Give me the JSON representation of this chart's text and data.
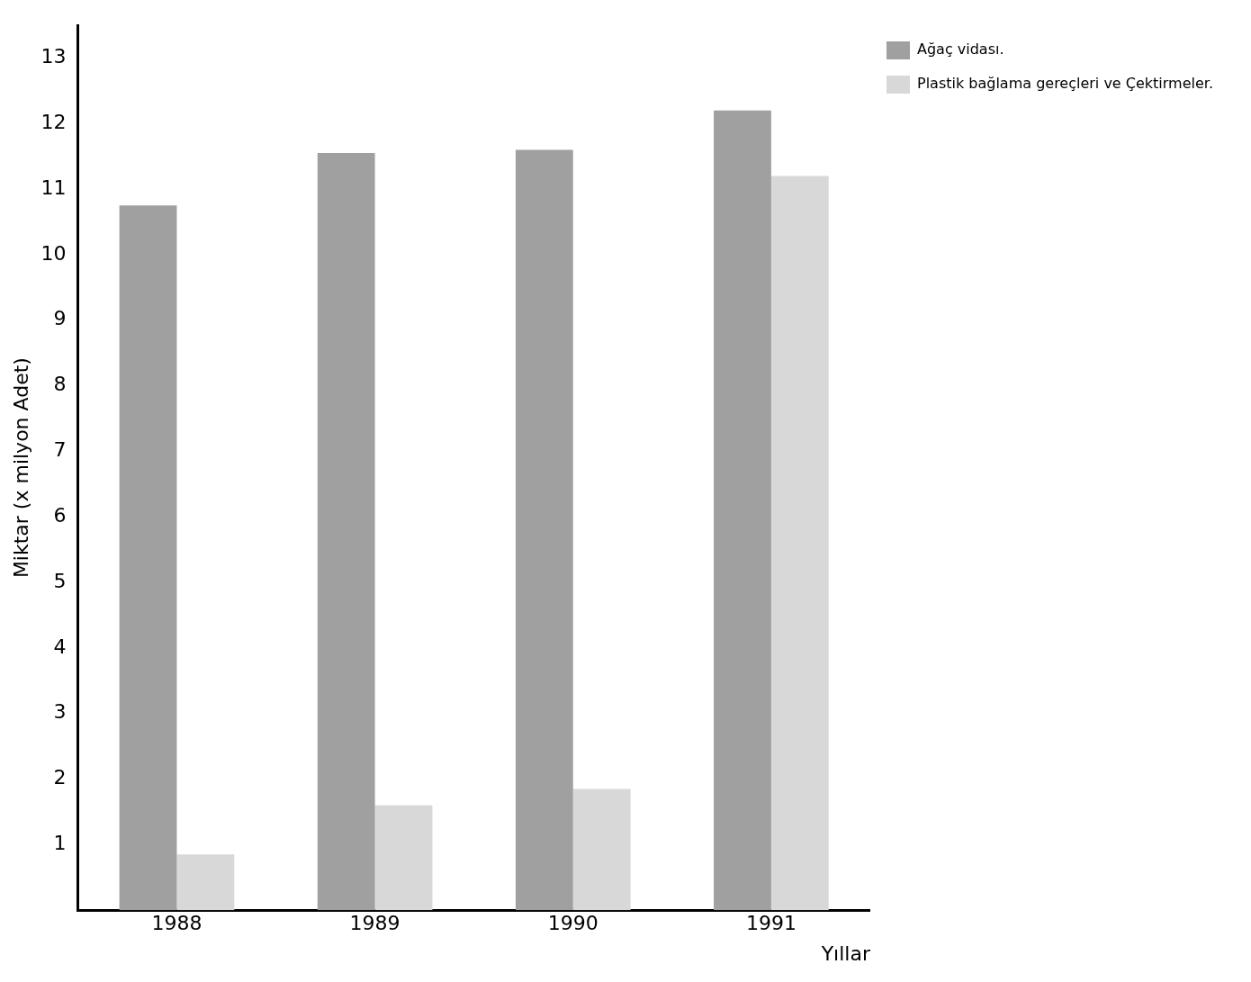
{
  "chart_data": {
    "type": "bar",
    "xlabel": "Yıllar",
    "ylabel": "Miktar (x milyon Adet)",
    "categories": [
      "1988",
      "1989",
      "1990",
      "1991"
    ],
    "series": [
      {
        "name": "Ağaç vidası.",
        "color": "#a0a0a0",
        "values": [
          10.75,
          11.55,
          11.6,
          12.2
        ]
      },
      {
        "name": "Plastik bağlama gereçleri ve Çektirmeler.",
        "color": "#d8d8d8",
        "values": [
          0.85,
          1.6,
          1.85,
          11.2
        ]
      }
    ],
    "ylim": [
      0,
      13.5
    ],
    "yticks": [
      1,
      2,
      3,
      4,
      5,
      6,
      7,
      8,
      9,
      10,
      11,
      12,
      13
    ],
    "grid": false,
    "legend": "top right"
  }
}
